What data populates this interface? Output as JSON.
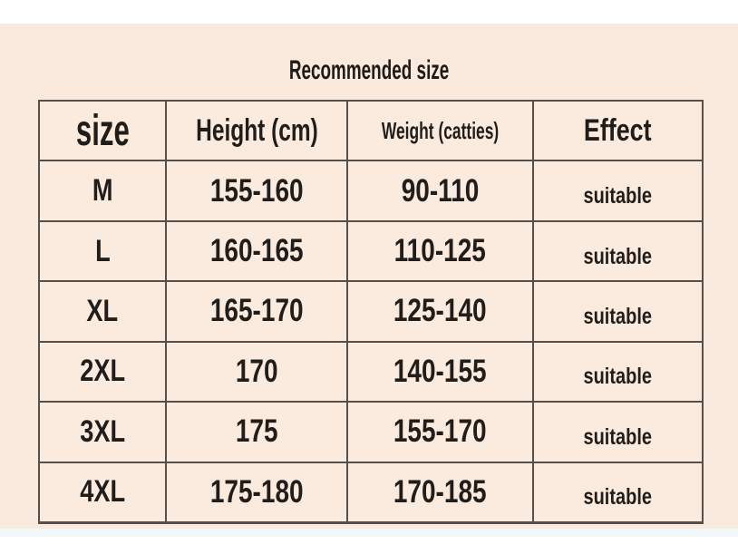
{
  "page": {
    "title": "Recommended size"
  },
  "colors": {
    "panel_background": "#fae9dd",
    "cell_background": "#fbebdf",
    "table_border": "#55504b",
    "text": "#211d1a",
    "page_background": "#ffffff",
    "bottom_strip": "#f0f8fa"
  },
  "table": {
    "headers": [
      "size",
      "Height (cm)",
      "Weight (catties)",
      "Effect"
    ],
    "rows": [
      {
        "size": "M",
        "height": "155-160",
        "weight": "90-110",
        "effect": "suitable"
      },
      {
        "size": "L",
        "height": "160-165",
        "weight": "110-125",
        "effect": "suitable"
      },
      {
        "size": "XL",
        "height": "165-170",
        "weight": "125-140",
        "effect": "suitable"
      },
      {
        "size": "2XL",
        "height": "170",
        "weight": "140-155",
        "effect": "suitable"
      },
      {
        "size": "3XL",
        "height": "175",
        "weight": "155-170",
        "effect": "suitable"
      },
      {
        "size": "4XL",
        "height": "175-180",
        "weight": "170-185",
        "effect": "suitable"
      }
    ]
  }
}
